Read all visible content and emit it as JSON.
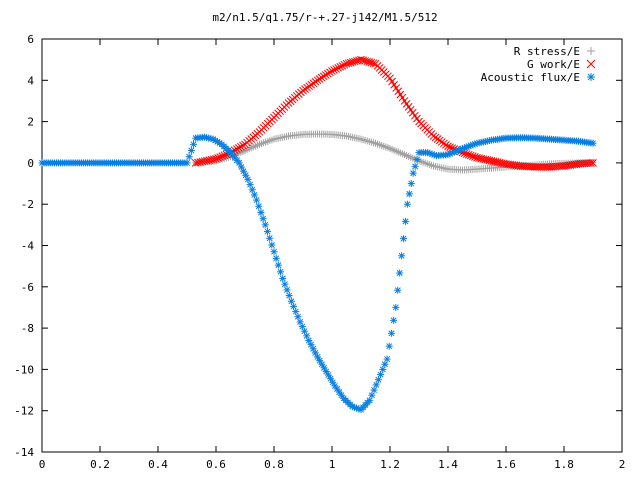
{
  "chart_data": {
    "type": "scatter",
    "title": "m2/n1.5/q1.75/r-+.27-j142/M1.5/512",
    "xlabel": "",
    "ylabel": "",
    "xlim": [
      0,
      2
    ],
    "ylim": [
      -14,
      6
    ],
    "xticks": [
      "0",
      "0.2",
      "0.4",
      "0.6",
      "0.8",
      "1",
      "1.2",
      "1.4",
      "1.6",
      "1.8",
      "2"
    ],
    "yticks": [
      "6",
      "4",
      "2",
      "0",
      "-2",
      "-4",
      "-6",
      "-8",
      "-10",
      "-12",
      "-14"
    ],
    "grid": false,
    "legend_position": "top-right",
    "series": [
      {
        "name": "R stress/E",
        "marker": "plus",
        "color": "#a0a0a0",
        "points": [
          [
            0.53,
            0.0
          ],
          [
            0.6,
            0.1
          ],
          [
            0.65,
            0.3
          ],
          [
            0.7,
            0.6
          ],
          [
            0.75,
            0.9
          ],
          [
            0.8,
            1.15
          ],
          [
            0.85,
            1.3
          ],
          [
            0.9,
            1.38
          ],
          [
            0.95,
            1.4
          ],
          [
            1.0,
            1.38
          ],
          [
            1.05,
            1.3
          ],
          [
            1.1,
            1.15
          ],
          [
            1.15,
            0.95
          ],
          [
            1.2,
            0.7
          ],
          [
            1.25,
            0.4
          ],
          [
            1.3,
            0.1
          ],
          [
            1.35,
            -0.15
          ],
          [
            1.4,
            -0.3
          ],
          [
            1.45,
            -0.35
          ],
          [
            1.5,
            -0.3
          ],
          [
            1.55,
            -0.25
          ],
          [
            1.6,
            -0.2
          ],
          [
            1.65,
            -0.15
          ],
          [
            1.7,
            -0.1
          ],
          [
            1.75,
            -0.05
          ],
          [
            1.8,
            -0.02
          ],
          [
            1.85,
            0.0
          ],
          [
            1.9,
            0.02
          ]
        ]
      },
      {
        "name": "G work/E",
        "marker": "cross",
        "color": "#ff0000",
        "points": [
          [
            0.53,
            0.0
          ],
          [
            0.6,
            0.2
          ],
          [
            0.65,
            0.5
          ],
          [
            0.7,
            0.9
          ],
          [
            0.75,
            1.5
          ],
          [
            0.8,
            2.2
          ],
          [
            0.85,
            2.9
          ],
          [
            0.9,
            3.5
          ],
          [
            0.95,
            4.0
          ],
          [
            1.0,
            4.45
          ],
          [
            1.05,
            4.8
          ],
          [
            1.1,
            5.0
          ],
          [
            1.15,
            4.8
          ],
          [
            1.2,
            4.1
          ],
          [
            1.25,
            3.0
          ],
          [
            1.3,
            2.0
          ],
          [
            1.35,
            1.3
          ],
          [
            1.4,
            0.8
          ],
          [
            1.45,
            0.5
          ],
          [
            1.5,
            0.25
          ],
          [
            1.55,
            0.1
          ],
          [
            1.6,
            -0.05
          ],
          [
            1.65,
            -0.15
          ],
          [
            1.7,
            -0.2
          ],
          [
            1.75,
            -0.2
          ],
          [
            1.8,
            -0.15
          ],
          [
            1.85,
            -0.05
          ],
          [
            1.9,
            0.0
          ]
        ]
      },
      {
        "name": "Acoustic flux/E",
        "marker": "star",
        "color": "#0a7fe0",
        "points": [
          [
            0.0,
            0.0
          ],
          [
            0.05,
            0.0
          ],
          [
            0.1,
            0.0
          ],
          [
            0.15,
            0.0
          ],
          [
            0.2,
            0.0
          ],
          [
            0.25,
            0.0
          ],
          [
            0.3,
            0.0
          ],
          [
            0.35,
            0.0
          ],
          [
            0.4,
            0.0
          ],
          [
            0.45,
            0.0
          ],
          [
            0.5,
            0.0
          ],
          [
            0.53,
            1.2
          ],
          [
            0.56,
            1.25
          ],
          [
            0.59,
            1.15
          ],
          [
            0.62,
            0.9
          ],
          [
            0.65,
            0.5
          ],
          [
            0.68,
            0.0
          ],
          [
            0.71,
            -0.8
          ],
          [
            0.74,
            -1.8
          ],
          [
            0.77,
            -3.0
          ],
          [
            0.8,
            -4.3
          ],
          [
            0.83,
            -5.6
          ],
          [
            0.86,
            -6.7
          ],
          [
            0.89,
            -7.7
          ],
          [
            0.92,
            -8.6
          ],
          [
            0.95,
            -9.4
          ],
          [
            0.98,
            -10.1
          ],
          [
            1.01,
            -10.8
          ],
          [
            1.04,
            -11.4
          ],
          [
            1.07,
            -11.8
          ],
          [
            1.1,
            -11.95
          ],
          [
            1.13,
            -11.5
          ],
          [
            1.16,
            -10.5
          ],
          [
            1.19,
            -9.5
          ],
          [
            1.22,
            -7.0
          ],
          [
            1.24,
            -4.5
          ],
          [
            1.26,
            -2.0
          ],
          [
            1.28,
            -0.5
          ],
          [
            1.3,
            0.5
          ],
          [
            1.33,
            0.5
          ],
          [
            1.36,
            0.35
          ],
          [
            1.4,
            0.4
          ],
          [
            1.45,
            0.7
          ],
          [
            1.5,
            0.95
          ],
          [
            1.55,
            1.1
          ],
          [
            1.6,
            1.2
          ],
          [
            1.65,
            1.22
          ],
          [
            1.7,
            1.2
          ],
          [
            1.75,
            1.15
          ],
          [
            1.8,
            1.1
          ],
          [
            1.85,
            1.05
          ],
          [
            1.9,
            0.95
          ]
        ]
      }
    ]
  }
}
